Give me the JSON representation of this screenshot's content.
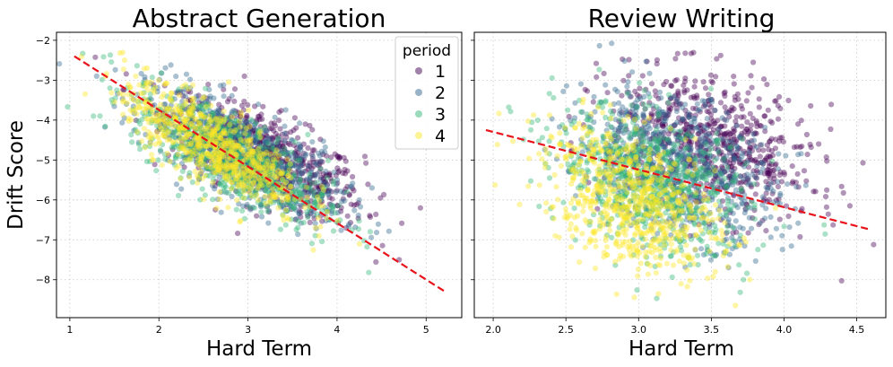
{
  "chart_data": [
    {
      "type": "scatter",
      "title": "Abstract Generation",
      "xlabel": "Hard Term",
      "ylabel": "Drift Score",
      "xlim": [
        0.85,
        5.4
      ],
      "ylim": [
        -8.95,
        -1.8
      ],
      "xticks": [
        1,
        2,
        3,
        4,
        5
      ],
      "xtick_labels": [
        "1",
        "2",
        "3",
        "4",
        "5"
      ],
      "yticks": [
        -2,
        -3,
        -4,
        -5,
        -6,
        -7,
        -8
      ],
      "ytick_labels": [
        "−2",
        "−3",
        "−4",
        "−5",
        "−6",
        "−7",
        "−8"
      ],
      "grid": true,
      "legend": {
        "title": "period",
        "placement": "top-right",
        "entries": [
          "1",
          "2",
          "3",
          "4"
        ]
      },
      "series": [
        {
          "name": "1",
          "color": "#440154",
          "x_mean": 3.2,
          "x_sd": 0.55,
          "y_intercept": -1.8,
          "slope": -0.98,
          "y_sd": 0.55
        },
        {
          "name": "2",
          "color": "#31688e",
          "x_mean": 2.95,
          "x_sd": 0.55,
          "y_intercept": -1.75,
          "slope": -1.05,
          "y_sd": 0.55
        },
        {
          "name": "3",
          "color": "#35b779",
          "x_mean": 2.8,
          "x_sd": 0.55,
          "y_intercept": -1.75,
          "slope": -1.12,
          "y_sd": 0.55
        },
        {
          "name": "4",
          "color": "#fde725",
          "x_mean": 2.6,
          "x_sd": 0.5,
          "y_intercept": -1.5,
          "slope": -1.2,
          "y_sd": 0.5
        }
      ],
      "fit_line": {
        "x": [
          1.05,
          5.2
        ],
        "y": [
          -2.4,
          -8.28
        ],
        "color": "#e8121a"
      }
    },
    {
      "type": "scatter",
      "title": "Review Writing",
      "xlabel": "Hard Term",
      "ylabel": "",
      "xlim": [
        1.87,
        4.7
      ],
      "ylim": [
        -8.95,
        -1.8
      ],
      "xticks": [
        2.0,
        2.5,
        3.0,
        3.5,
        4.0,
        4.5
      ],
      "xtick_labels": [
        "2.0",
        "2.5",
        "3.0",
        "3.5",
        "4.0",
        "4.5"
      ],
      "yticks": [
        -2,
        -3,
        -4,
        -5,
        -6,
        -7,
        -8
      ],
      "ytick_labels": [],
      "grid": true,
      "series": [
        {
          "name": "1",
          "color": "#440154",
          "x_mean": 3.5,
          "x_sd": 0.35,
          "y_intercept": -1.5,
          "slope": -0.9,
          "y_sd": 0.85
        },
        {
          "name": "2",
          "color": "#31688e",
          "x_mean": 3.25,
          "x_sd": 0.35,
          "y_intercept": -1.7,
          "slope": -1.05,
          "y_sd": 0.85
        },
        {
          "name": "3",
          "color": "#35b779",
          "x_mean": 3.1,
          "x_sd": 0.33,
          "y_intercept": -2.0,
          "slope": -1.15,
          "y_sd": 0.85
        },
        {
          "name": "4",
          "color": "#fde725",
          "x_mean": 2.95,
          "x_sd": 0.3,
          "y_intercept": -2.3,
          "slope": -1.25,
          "y_sd": 0.85
        }
      ],
      "fit_line": {
        "x": [
          1.95,
          4.6
        ],
        "y": [
          -4.25,
          -6.75
        ],
        "color": "#e8121a"
      }
    }
  ]
}
